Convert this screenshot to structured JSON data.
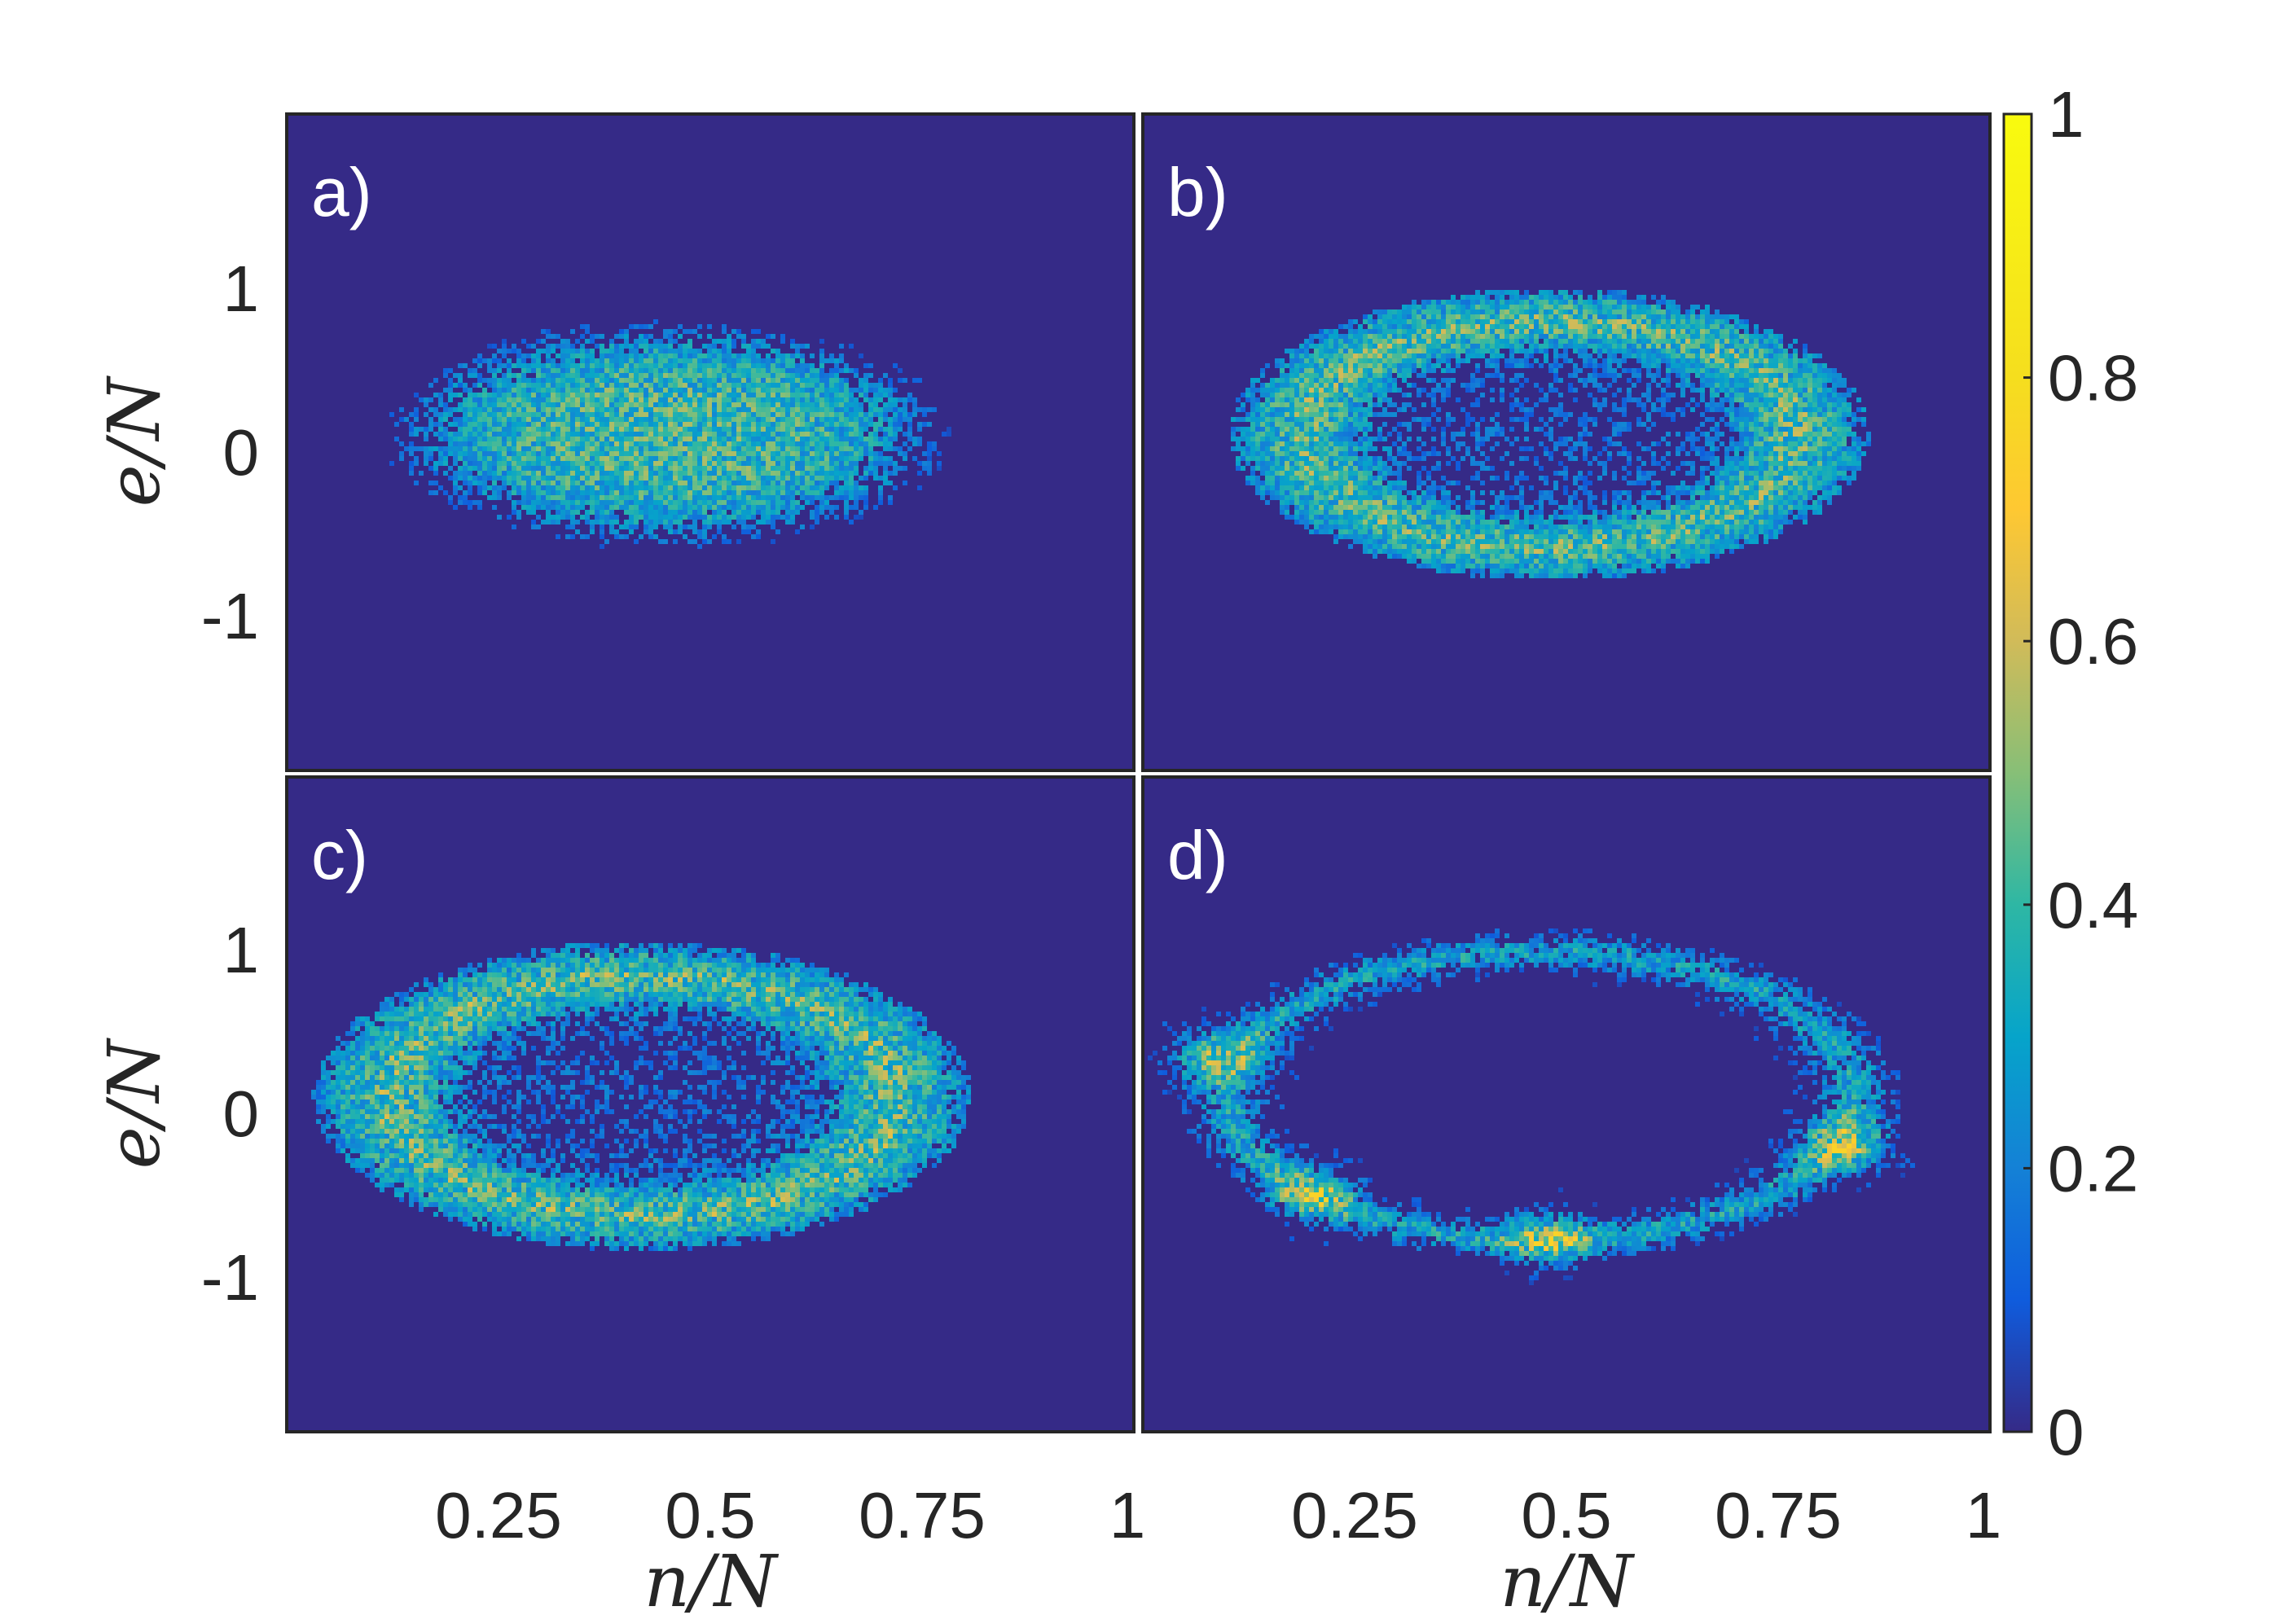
{
  "chart_data": {
    "type": "heatmap",
    "colormap": "parula",
    "background_color": "#352A87",
    "colorbar": {
      "min": 0,
      "max": 1,
      "ticks": [
        0,
        0.2,
        0.4,
        0.6,
        0.8,
        1
      ],
      "tick_labels": [
        "0",
        "0.2",
        "0.4",
        "0.6",
        "0.8",
        "1"
      ]
    },
    "x_axis": {
      "label": "n/N",
      "range": [
        0,
        1
      ],
      "ticks": [
        0.25,
        0.5,
        0.75,
        1
      ],
      "tick_labels": [
        "0.25",
        "0.5",
        "0.75",
        "1"
      ]
    },
    "y_axis": {
      "label": "e/N",
      "range": [
        -2,
        2
      ],
      "ticks": [
        1,
        0,
        -1
      ],
      "tick_labels": [
        "1",
        "0",
        "-1"
      ]
    },
    "panels": [
      {
        "letter": "a)",
        "description": "filled elliptical cloud",
        "shape": {
          "cx": 0.45,
          "cy": 0.05,
          "rx": 0.34,
          "ry": 0.72,
          "kind": "filled"
        },
        "peak_value": 0.55
      },
      {
        "letter": "b)",
        "description": "ring with denser rim",
        "shape": {
          "cx": 0.48,
          "cy": 0.05,
          "rx": 0.36,
          "ry": 0.85,
          "kind": "ring"
        },
        "peak_value": 0.6
      },
      {
        "letter": "c)",
        "description": "ring, hollow center, bright left edge",
        "shape": {
          "cx": 0.42,
          "cy": 0.05,
          "rx": 0.37,
          "ry": 0.9,
          "kind": "ring"
        },
        "peak_value": 0.7
      },
      {
        "letter": "d)",
        "description": "thin ring with hot spots",
        "shape": {
          "cx": 0.47,
          "cy": 0.05,
          "rx": 0.41,
          "ry": 0.98,
          "kind": "thin-ring"
        },
        "hotspots": [
          {
            "x": 0.08,
            "y": 0.3
          },
          {
            "x": 0.2,
            "y": -0.55
          },
          {
            "x": 0.48,
            "y": -0.82
          },
          {
            "x": 0.83,
            "y": -0.25
          }
        ],
        "peak_value": 0.75
      }
    ]
  }
}
